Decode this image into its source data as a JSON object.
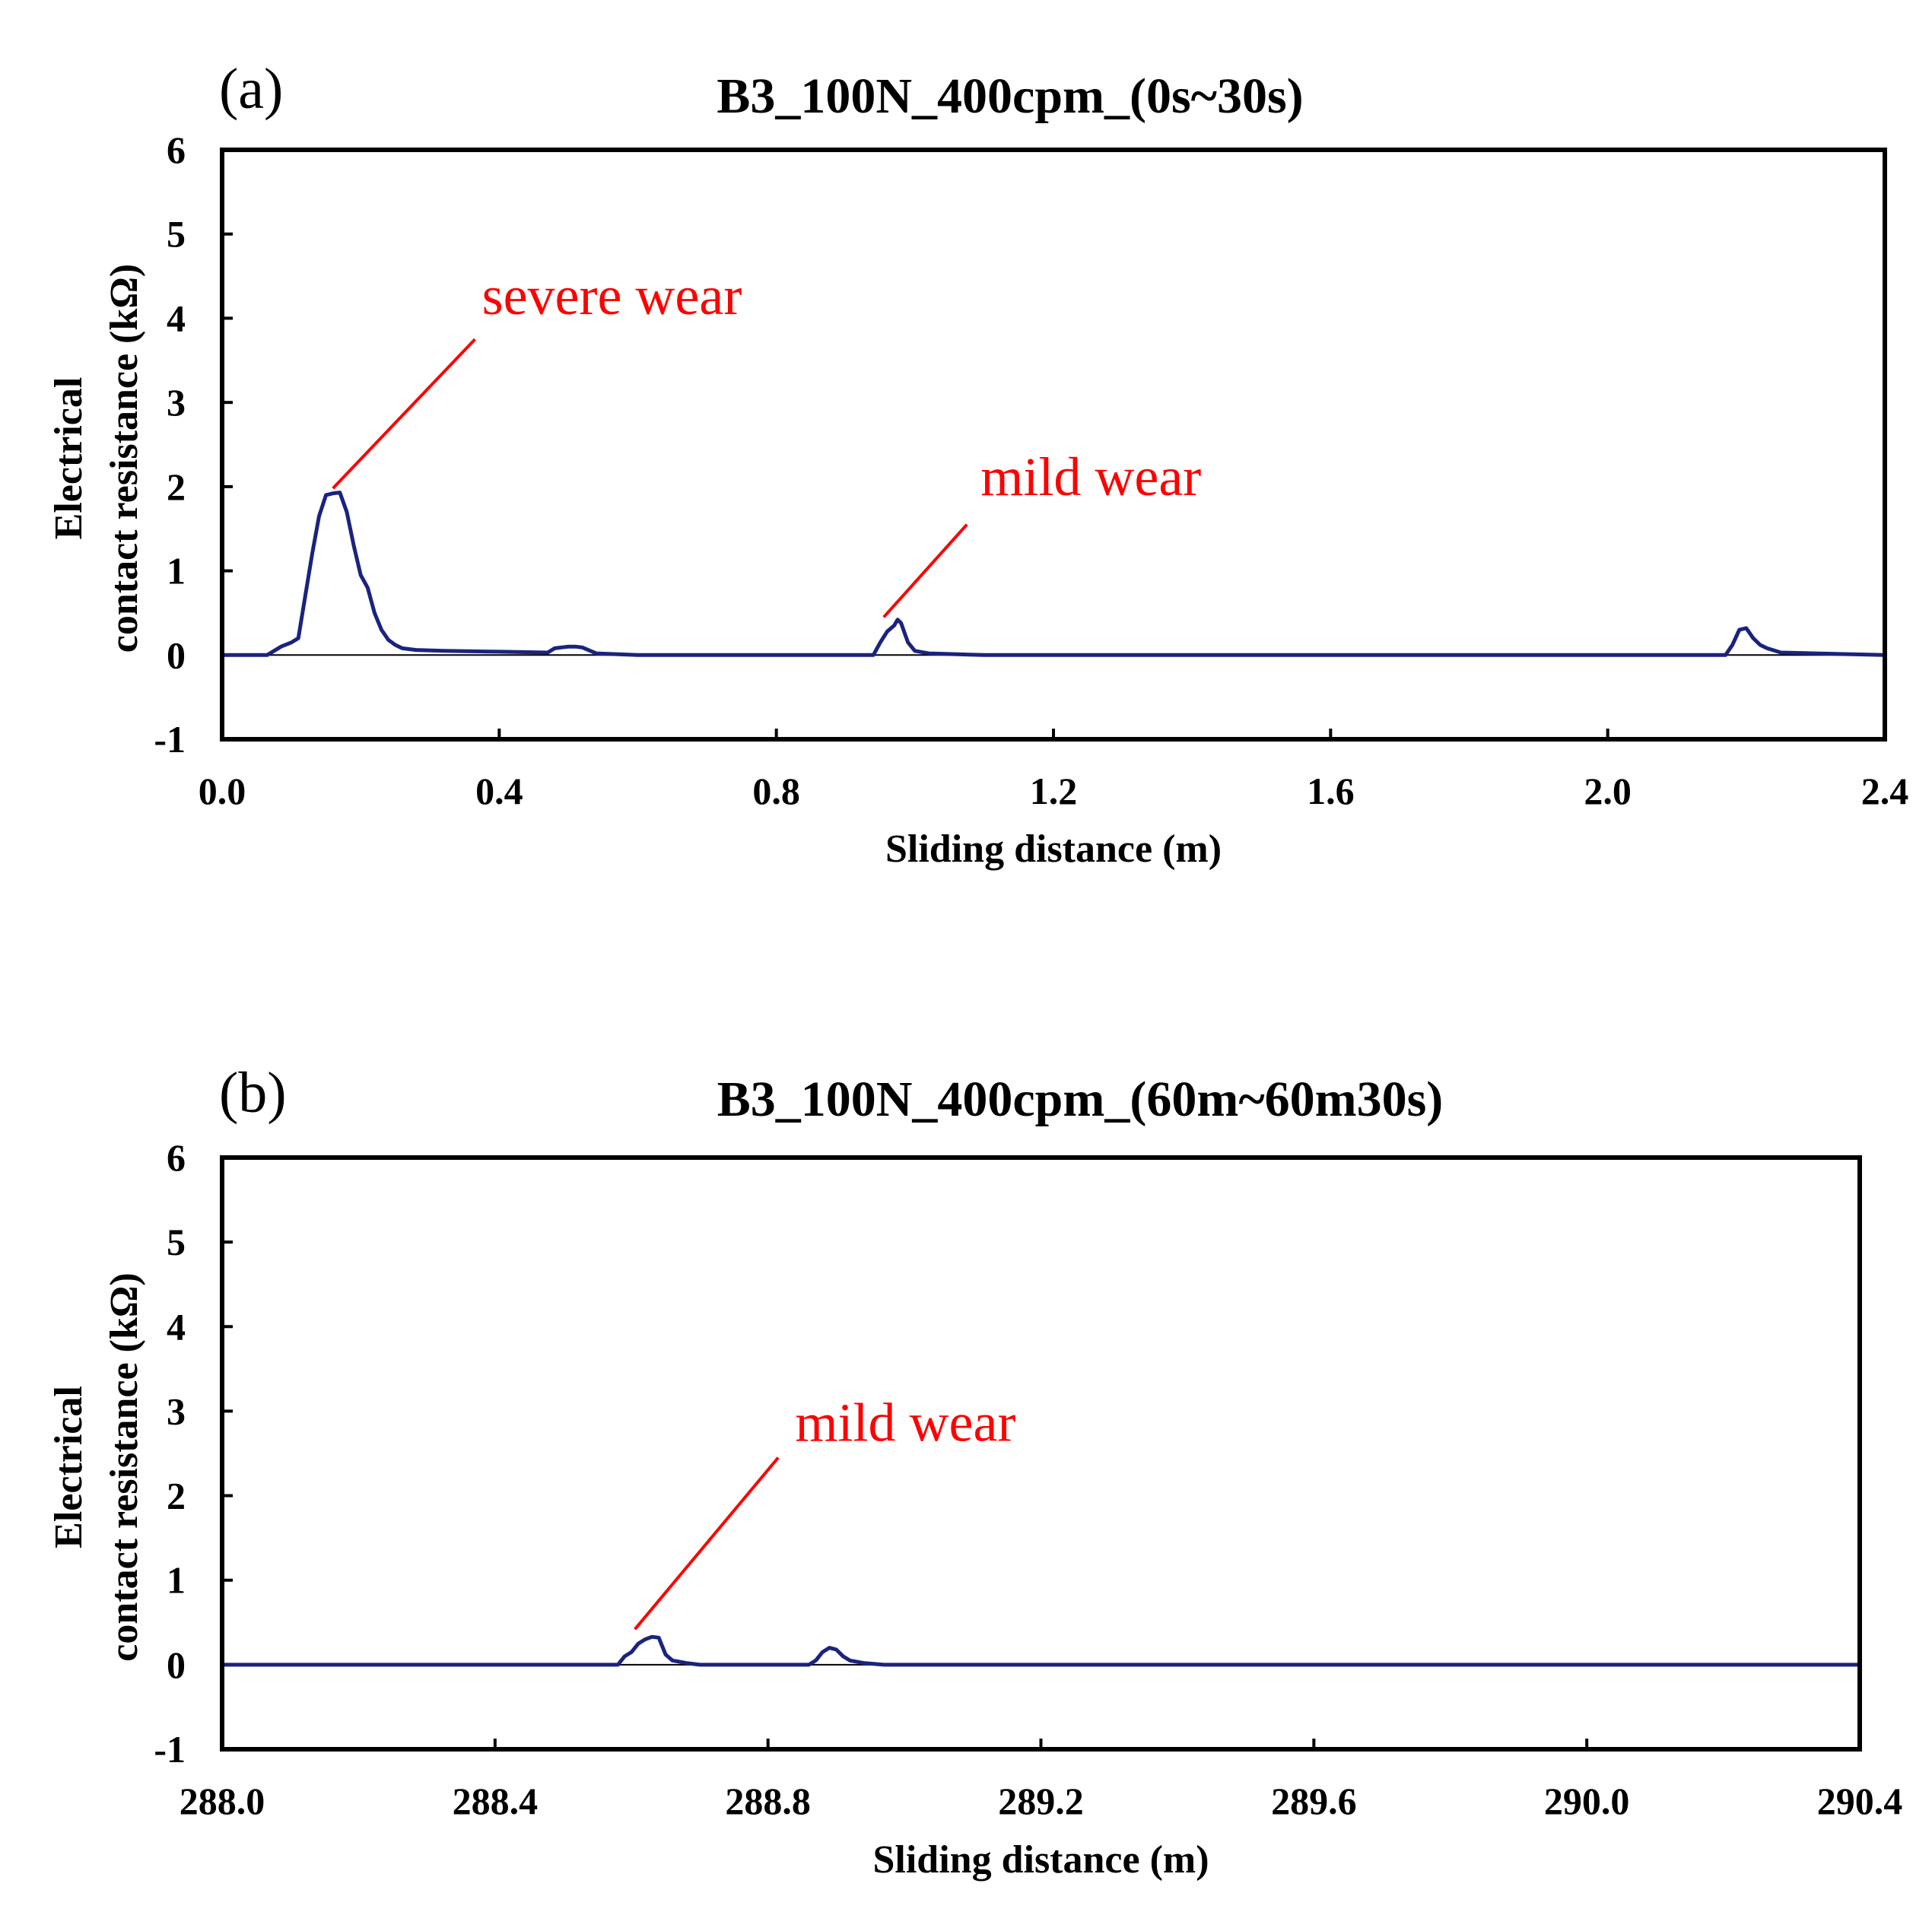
{
  "colors": {
    "series": "#1a237e",
    "annotation": "#ff0000",
    "axes": "#000000"
  },
  "chart_data": [
    {
      "type": "line",
      "panel_label": "(a)",
      "title": "B3_100N_400cpm_(0s~30s)",
      "xlabel": "Sliding distance (m)",
      "ylabel_lines": [
        "Electrical",
        "contact resistance (kΩ)"
      ],
      "xlim": [
        0.0,
        2.4
      ],
      "ylim": [
        -1,
        6
      ],
      "x_ticks": [
        "0.0",
        "0.4",
        "0.8",
        "1.2",
        "1.6",
        "2.0",
        "2.4"
      ],
      "y_ticks": [
        "6",
        "5",
        "4",
        "3",
        "2",
        "1",
        "0",
        "-1"
      ],
      "grid": false,
      "series": [
        {
          "name": "Electrical contact resistance",
          "x": [
            0.0,
            0.065,
            0.075,
            0.085,
            0.1,
            0.11,
            0.12,
            0.13,
            0.14,
            0.15,
            0.16,
            0.17,
            0.18,
            0.19,
            0.2,
            0.21,
            0.22,
            0.23,
            0.24,
            0.25,
            0.26,
            0.28,
            0.32,
            0.4,
            0.47,
            0.48,
            0.5,
            0.51,
            0.52,
            0.54,
            0.6,
            0.9,
            0.94,
            0.95,
            0.96,
            0.97,
            0.975,
            0.98,
            0.99,
            1.0,
            1.02,
            1.1,
            1.6,
            2.0,
            2.17,
            2.18,
            2.19,
            2.2,
            2.21,
            2.22,
            2.23,
            2.25,
            2.4
          ],
          "y": [
            0.0,
            0.0,
            0.05,
            0.1,
            0.15,
            0.2,
            0.7,
            1.2,
            1.65,
            1.9,
            1.92,
            1.93,
            1.7,
            1.3,
            0.95,
            0.8,
            0.5,
            0.3,
            0.18,
            0.12,
            0.08,
            0.06,
            0.05,
            0.04,
            0.03,
            0.08,
            0.1,
            0.1,
            0.09,
            0.02,
            0.0,
            0.0,
            0.0,
            0.15,
            0.28,
            0.35,
            0.42,
            0.38,
            0.15,
            0.05,
            0.02,
            0.0,
            0.0,
            0.0,
            0.0,
            0.12,
            0.3,
            0.32,
            0.2,
            0.12,
            0.08,
            0.03,
            0.0
          ]
        }
      ],
      "annotations": [
        {
          "text": "severe wear",
          "target_x": 0.16,
          "target_y": 1.98,
          "text_x": 0.375,
          "text_y": 4.05,
          "line_end_x": 0.365,
          "line_end_y": 3.75
        },
        {
          "text": "mild wear",
          "target_x": 0.955,
          "target_y": 0.45,
          "text_x": 1.095,
          "text_y": 1.9,
          "line_end_x": 1.075,
          "line_end_y": 1.55
        }
      ]
    },
    {
      "type": "line",
      "panel_label": "(b)",
      "title": "B3_100N_400cpm_(60m~60m30s)",
      "xlabel": "Sliding distance (m)",
      "ylabel_lines": [
        "Electrical",
        "contact resistance (kΩ)"
      ],
      "xlim": [
        288.0,
        290.4
      ],
      "ylim": [
        -1,
        6
      ],
      "x_ticks": [
        "288.0",
        "288.4",
        "288.8",
        "289.2",
        "289.6",
        "290.0",
        "290.4"
      ],
      "y_ticks": [
        "6",
        "5",
        "4",
        "3",
        "2",
        "1",
        "0",
        "-1"
      ],
      "grid": false,
      "series": [
        {
          "name": "Electrical contact resistance",
          "x": [
            288.0,
            288.58,
            288.59,
            288.6,
            288.61,
            288.62,
            288.63,
            288.64,
            288.65,
            288.66,
            288.68,
            288.7,
            288.86,
            288.87,
            288.88,
            288.89,
            288.9,
            288.91,
            288.92,
            288.94,
            288.97,
            290.4
          ],
          "y": [
            0.0,
            0.0,
            0.1,
            0.15,
            0.25,
            0.3,
            0.33,
            0.32,
            0.12,
            0.05,
            0.02,
            0.0,
            0.0,
            0.05,
            0.15,
            0.2,
            0.18,
            0.1,
            0.05,
            0.02,
            0.0,
            0.0
          ]
        }
      ],
      "annotations": [
        {
          "text": "mild wear",
          "target_x": 288.605,
          "target_y": 0.42,
          "text_x": 288.84,
          "text_y": 2.65,
          "line_end_x": 288.815,
          "line_end_y": 2.45
        }
      ]
    }
  ]
}
